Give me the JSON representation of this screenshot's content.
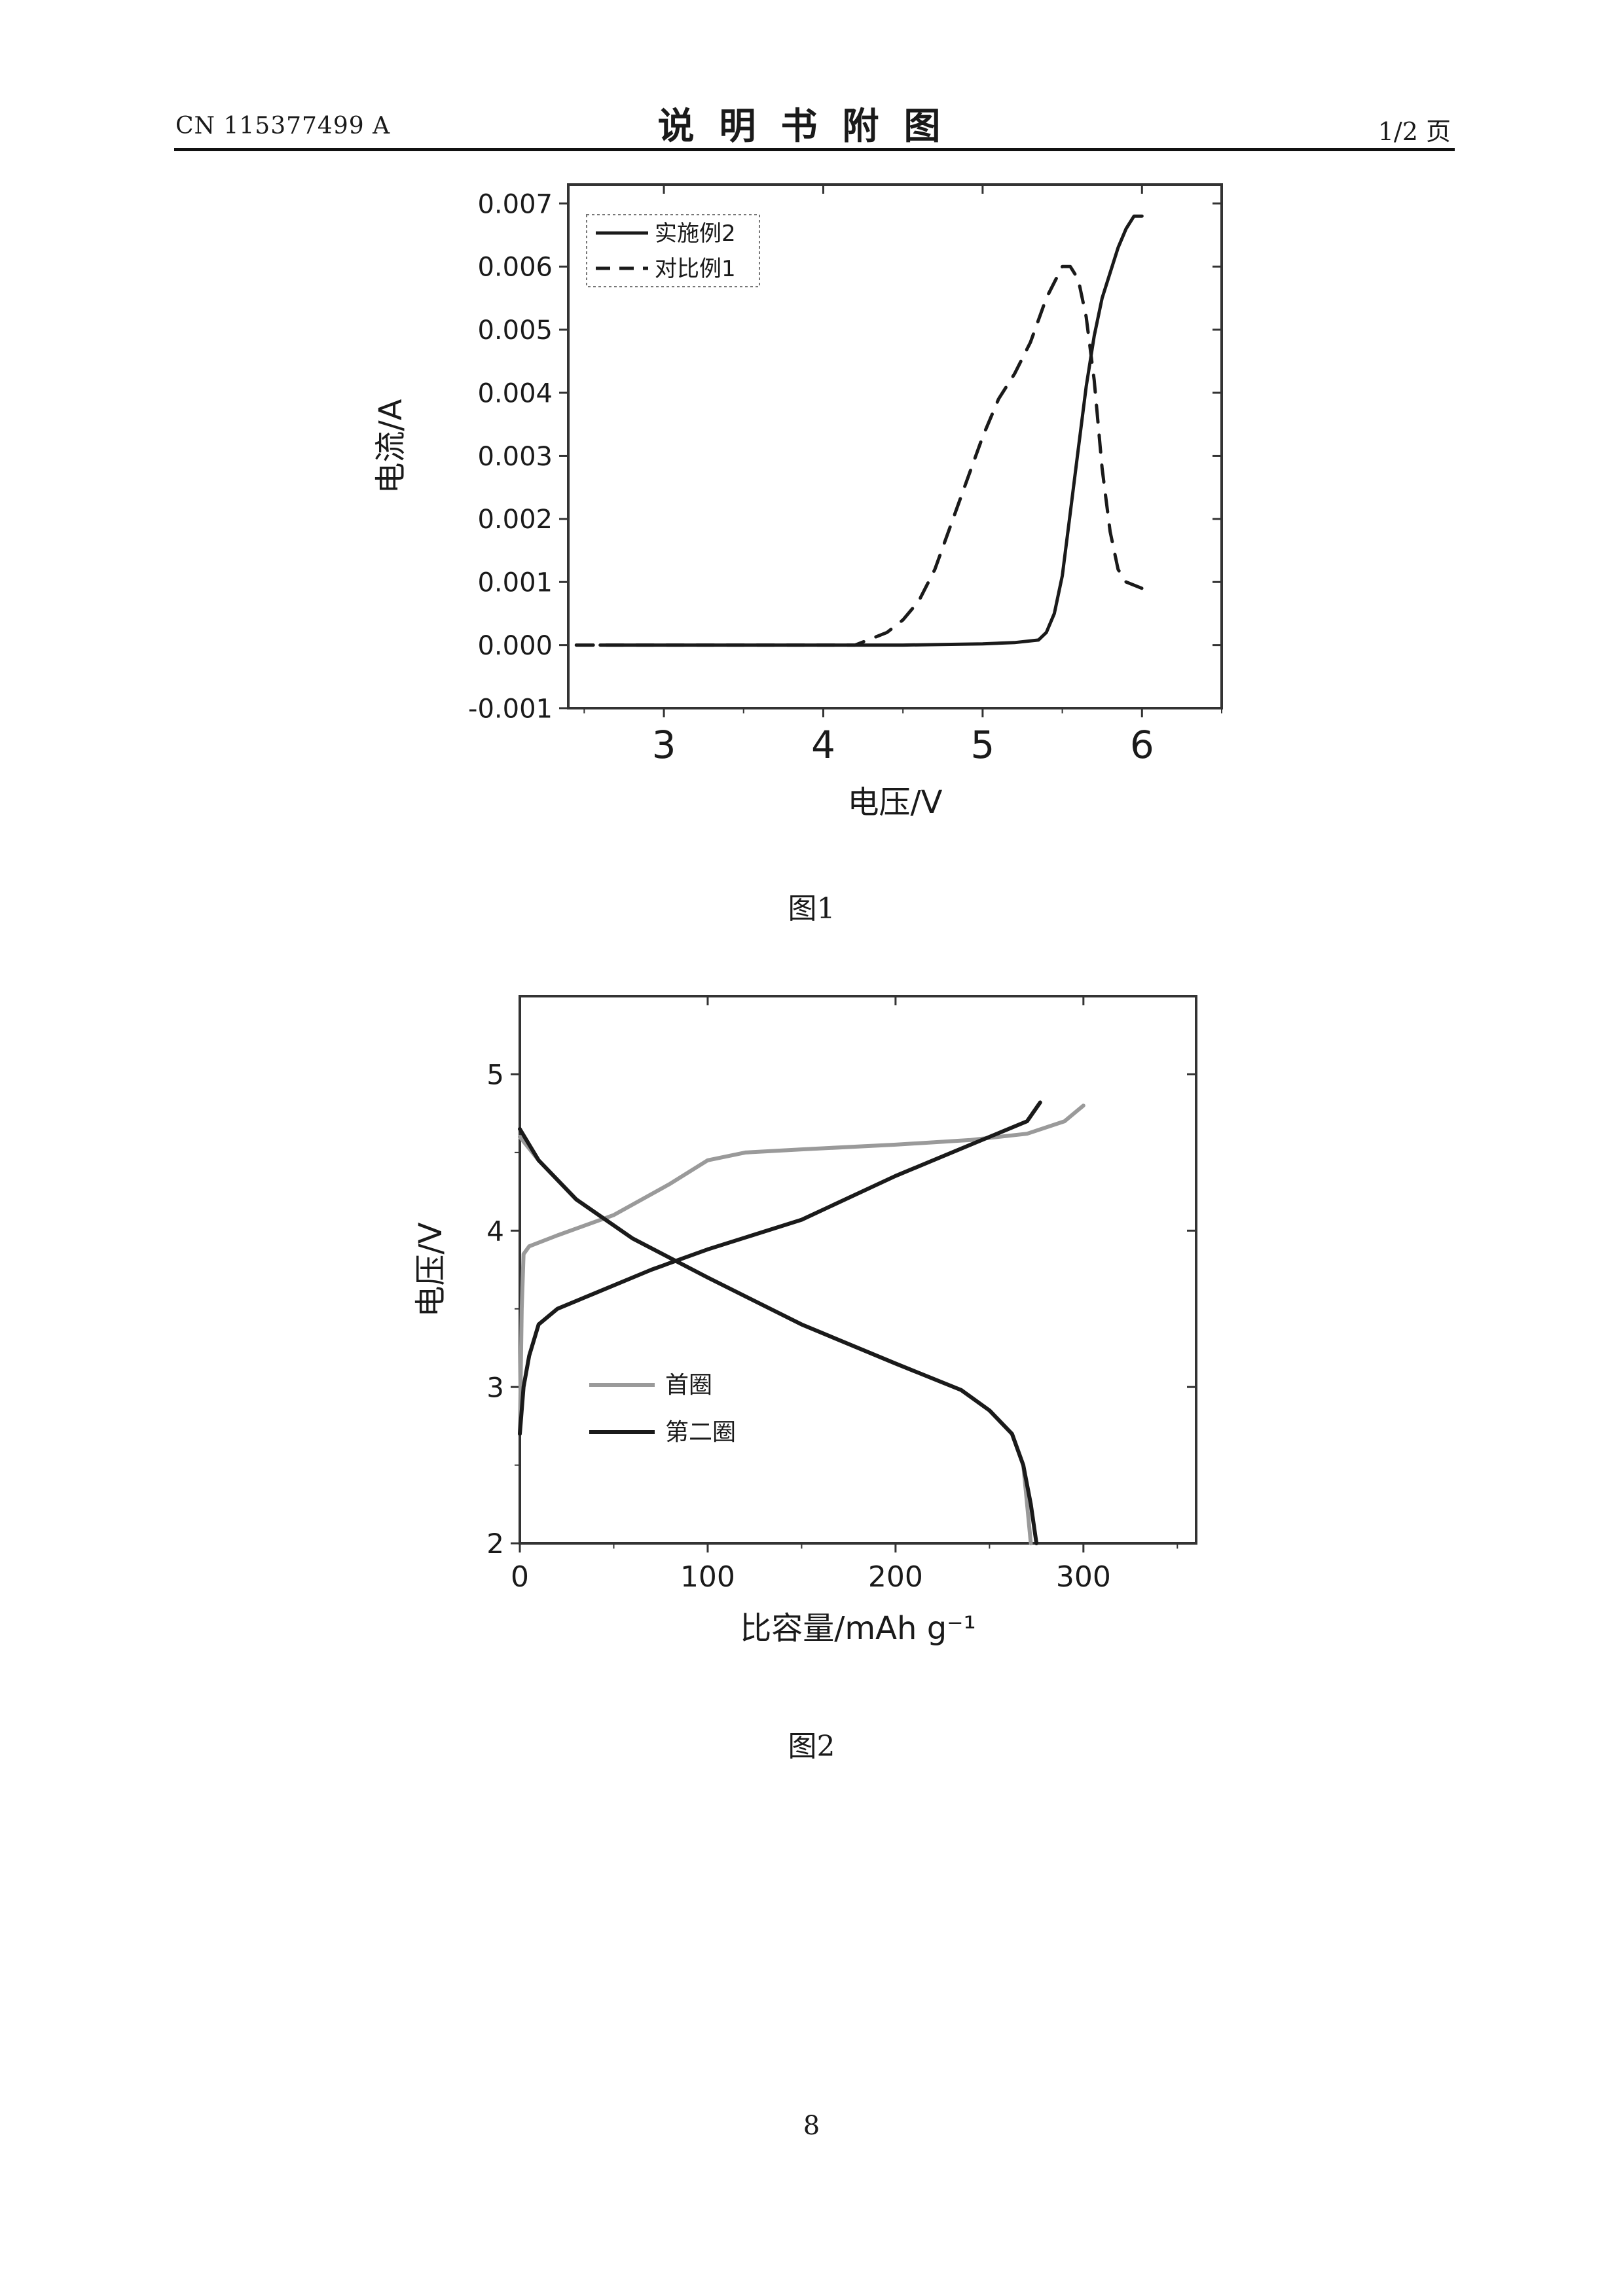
{
  "header": {
    "doc_number": "CN 115377499 A",
    "title": "说明书附图",
    "page_of": "1/2 页"
  },
  "captions": {
    "fig1": "图1",
    "fig2": "图2"
  },
  "footer": {
    "page_number": "8"
  },
  "chart_data": [
    {
      "type": "line",
      "title": "",
      "xlabel": "电压/V",
      "ylabel": "电流/A",
      "xlim": [
        2.4,
        6.5
      ],
      "ylim": [
        -0.001,
        0.0073
      ],
      "xticks": [
        3,
        4,
        5,
        6
      ],
      "xtick_labels": [
        "3",
        "4",
        "5",
        "6"
      ],
      "yticks": [
        -0.001,
        0.0,
        0.001,
        0.002,
        0.003,
        0.004,
        0.005,
        0.006,
        0.007
      ],
      "ytick_labels": [
        "-0.001",
        "0.000",
        "0.001",
        "0.002",
        "0.003",
        "0.004",
        "0.005",
        "0.006",
        "0.007"
      ],
      "grid": false,
      "legend": "top-left",
      "series": [
        {
          "name": "实施例2",
          "style": "solid",
          "color": "#1a1a1a",
          "x": [
            2.6,
            3.0,
            3.5,
            4.0,
            4.5,
            5.0,
            5.2,
            5.35,
            5.4,
            5.45,
            5.5,
            5.55,
            5.6,
            5.65,
            5.7,
            5.75,
            5.8,
            5.85,
            5.9,
            5.95,
            6.0
          ],
          "y": [
            0.0,
            0.0,
            0.0,
            0.0,
            0.0,
            2e-05,
            4e-05,
            8e-05,
            0.0002,
            0.0005,
            0.0011,
            0.0021,
            0.0031,
            0.0041,
            0.0049,
            0.0055,
            0.0059,
            0.0063,
            0.0066,
            0.0068,
            0.0068
          ]
        },
        {
          "name": "对比例1",
          "style": "dashed",
          "color": "#1a1a1a",
          "x": [
            2.45,
            3.0,
            3.5,
            4.0,
            4.2,
            4.3,
            4.4,
            4.5,
            4.6,
            4.7,
            4.8,
            4.9,
            5.0,
            5.1,
            5.2,
            5.3,
            5.4,
            5.5,
            5.55,
            5.6,
            5.65,
            5.7,
            5.75,
            5.8,
            5.85,
            5.9,
            6.0
          ],
          "y": [
            0.0,
            0.0,
            0.0,
            0.0,
            0.0,
            0.0001,
            0.0002,
            0.0004,
            0.0007,
            0.0012,
            0.0019,
            0.0026,
            0.0033,
            0.0039,
            0.0043,
            0.0048,
            0.0055,
            0.006,
            0.006,
            0.0058,
            0.0052,
            0.0042,
            0.0028,
            0.0018,
            0.0012,
            0.001,
            0.0009
          ]
        }
      ]
    },
    {
      "type": "line",
      "title": "",
      "xlabel": "比容量/mAh g⁻¹",
      "ylabel": "电压/V",
      "xlim": [
        0,
        360
      ],
      "ylim": [
        2,
        5.5
      ],
      "xticks": [
        0,
        100,
        200,
        300
      ],
      "xtick_labels": [
        "0",
        "100",
        "200",
        "300"
      ],
      "yticks": [
        2,
        3,
        4,
        5
      ],
      "ytick_labels": [
        "2",
        "3",
        "4",
        "5"
      ],
      "grid": false,
      "legend": "lower-left",
      "series": [
        {
          "name": "首圈",
          "part": "charge",
          "color": "#9a9a9a",
          "x": [
            0,
            1,
            2,
            5,
            20,
            50,
            80,
            100,
            120,
            150,
            200,
            240,
            270,
            290,
            300
          ],
          "y": [
            2.7,
            3.5,
            3.85,
            3.9,
            3.97,
            4.1,
            4.3,
            4.45,
            4.5,
            4.52,
            4.55,
            4.58,
            4.62,
            4.7,
            4.8
          ]
        },
        {
          "name": "首圈",
          "part": "discharge",
          "color": "#9a9a9a",
          "x": [
            0,
            10,
            30,
            60,
            100,
            150,
            200,
            235,
            250,
            262,
            268,
            270,
            272
          ],
          "y": [
            4.6,
            4.45,
            4.2,
            3.95,
            3.7,
            3.4,
            3.15,
            2.98,
            2.85,
            2.7,
            2.5,
            2.25,
            2.0
          ]
        },
        {
          "name": "第二圈",
          "part": "charge",
          "color": "#1a1a1a",
          "x": [
            0,
            2,
            5,
            10,
            20,
            40,
            70,
            100,
            150,
            200,
            240,
            270,
            277
          ],
          "y": [
            2.7,
            3.0,
            3.2,
            3.4,
            3.5,
            3.6,
            3.75,
            3.88,
            4.07,
            4.35,
            4.55,
            4.7,
            4.82
          ]
        },
        {
          "name": "第二圈",
          "part": "discharge",
          "color": "#1a1a1a",
          "x": [
            0,
            10,
            30,
            60,
            100,
            150,
            200,
            235,
            250,
            262,
            268,
            272,
            275
          ],
          "y": [
            4.65,
            4.45,
            4.2,
            3.95,
            3.7,
            3.4,
            3.15,
            2.98,
            2.85,
            2.7,
            2.5,
            2.25,
            2.0
          ]
        }
      ]
    }
  ]
}
